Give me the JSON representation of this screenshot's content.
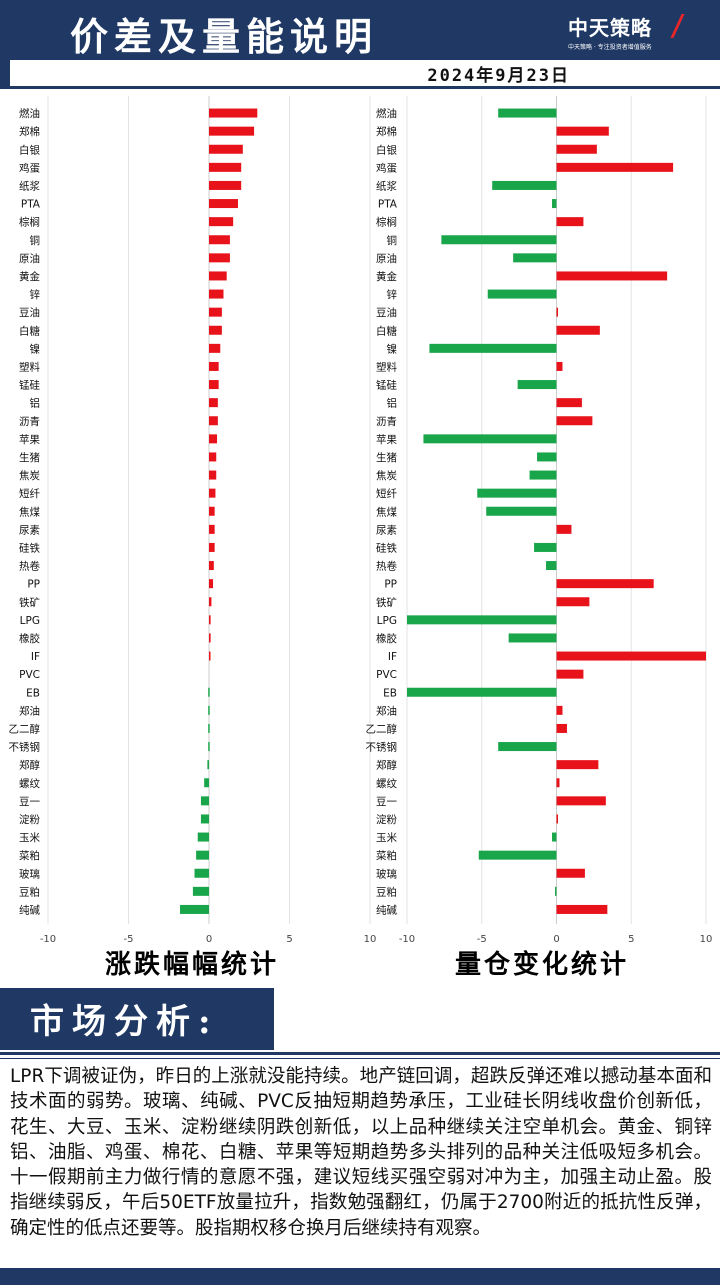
{
  "header": {
    "title": "价差及量能说明",
    "date": "2024年9月23日",
    "logo_text": "中天策略",
    "logo_tagline": "中天策略 · 专注投资者增值服务"
  },
  "colors": {
    "navy": "#1f3864",
    "up": "#e8121b",
    "down": "#19a64a"
  },
  "chart_data": [
    {
      "type": "bar",
      "orientation": "horizontal",
      "title": "涨跌幅幅统计",
      "categories": [
        "燃油",
        "郑棉",
        "白银",
        "鸡蛋",
        "纸浆",
        "PTA",
        "棕榈",
        "铜",
        "原油",
        "黄金",
        "锌",
        "豆油",
        "白糖",
        "镍",
        "塑料",
        "锰硅",
        "铝",
        "沥青",
        "苹果",
        "生猪",
        "焦炭",
        "短纤",
        "焦煤",
        "尿素",
        "硅铁",
        "热卷",
        "PP",
        "铁矿",
        "LPG",
        "橡胶",
        "IF",
        "PVC",
        "EB",
        "郑油",
        "乙二醇",
        "不锈钢",
        "郑醇",
        "螺纹",
        "豆一",
        "淀粉",
        "玉米",
        "菜粕",
        "玻璃",
        "豆粕",
        "纯碱"
      ],
      "values": [
        3.0,
        2.8,
        2.1,
        2.0,
        2.0,
        1.8,
        1.5,
        1.3,
        1.3,
        1.1,
        0.9,
        0.8,
        0.8,
        0.7,
        0.6,
        0.6,
        0.55,
        0.55,
        0.5,
        0.45,
        0.45,
        0.4,
        0.35,
        0.35,
        0.35,
        0.3,
        0.25,
        0.15,
        0.1,
        0.1,
        0.05,
        0,
        -0.05,
        -0.05,
        -0.05,
        -0.05,
        -0.1,
        -0.3,
        -0.5,
        -0.5,
        -0.7,
        -0.8,
        -0.9,
        -1.0,
        -1.8
      ],
      "xlim": [
        -10,
        10
      ],
      "xticks": [
        "-10",
        "-5",
        "0",
        "5",
        "10"
      ],
      "grid": true
    },
    {
      "type": "bar",
      "orientation": "horizontal",
      "title": "量仓变化统计",
      "categories": [
        "燃油",
        "郑棉",
        "白银",
        "鸡蛋",
        "纸浆",
        "PTA",
        "棕榈",
        "铜",
        "原油",
        "黄金",
        "锌",
        "豆油",
        "白糖",
        "镍",
        "塑料",
        "锰硅",
        "铝",
        "沥青",
        "苹果",
        "生猪",
        "焦炭",
        "短纤",
        "焦煤",
        "尿素",
        "硅铁",
        "热卷",
        "PP",
        "铁矿",
        "LPG",
        "橡胶",
        "IF",
        "PVC",
        "EB",
        "郑油",
        "乙二醇",
        "不锈钢",
        "郑醇",
        "螺纹",
        "豆一",
        "淀粉",
        "玉米",
        "菜粕",
        "玻璃",
        "豆粕",
        "纯碱"
      ],
      "values": [
        -3.9,
        3.5,
        2.7,
        7.8,
        -4.3,
        -0.3,
        1.8,
        -7.7,
        -2.9,
        7.4,
        -4.6,
        0.1,
        2.9,
        -8.5,
        0.4,
        -2.6,
        1.7,
        2.4,
        -8.9,
        -1.3,
        -1.8,
        -5.3,
        -4.7,
        1.0,
        -1.5,
        -0.7,
        6.5,
        2.2,
        -10.0,
        -3.2,
        10.0,
        1.8,
        -10.0,
        0.4,
        0.7,
        -3.9,
        2.8,
        0.2,
        3.3,
        0.1,
        -0.3,
        -5.2,
        1.9,
        -0.1,
        3.4
      ],
      "xlim": [
        -10,
        10
      ],
      "xticks": [
        "-10",
        "-5",
        "0",
        "5",
        "10"
      ],
      "grid": true
    }
  ],
  "analysis": {
    "section_title": "市场分析:",
    "text": "LPR下调被证伪，昨日的上涨就没能持续。地产链回调，超跌反弹还难以撼动基本面和技术面的弱势。玻璃、纯碱、PVC反抽短期趋势承压，工业硅长阴线收盘价创新低，花生、大豆、玉米、淀粉继续阴跌创新低，以上品种继续关注空单机会。黄金、铜锌铝、油脂、鸡蛋、棉花、白糖、苹果等短期趋势多头排列的品种关注低吸短多机会。十一假期前主力做行情的意愿不强，建议短线买强空弱对冲为主，加强主动止盈。股指继续弱反，午后50ETF放量拉升，指数勉强翻红，仍属于2700附近的抵抗性反弹，确定性的低点还要等。股指期权移仓换月后继续持有观察。"
  }
}
